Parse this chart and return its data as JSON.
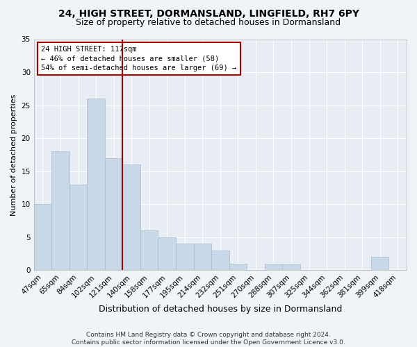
{
  "title1": "24, HIGH STREET, DORMANSLAND, LINGFIELD, RH7 6PY",
  "title2": "Size of property relative to detached houses in Dormansland",
  "xlabel": "Distribution of detached houses by size in Dormansland",
  "ylabel": "Number of detached properties",
  "categories": [
    "47sqm",
    "65sqm",
    "84sqm",
    "102sqm",
    "121sqm",
    "140sqm",
    "158sqm",
    "177sqm",
    "195sqm",
    "214sqm",
    "232sqm",
    "251sqm",
    "270sqm",
    "288sqm",
    "307sqm",
    "325sqm",
    "344sqm",
    "362sqm",
    "381sqm",
    "399sqm",
    "418sqm"
  ],
  "values": [
    10,
    18,
    13,
    26,
    17,
    16,
    6,
    5,
    4,
    4,
    3,
    1,
    0,
    1,
    1,
    0,
    0,
    0,
    0,
    2,
    0
  ],
  "bar_color": "#c8d8e8",
  "bar_edge_color": "#aabccc",
  "vline_x_index": 4.5,
  "vline_color": "#aa0000",
  "annotation_text": "24 HIGH STREET: 117sqm\n← 46% of detached houses are smaller (58)\n54% of semi-detached houses are larger (69) →",
  "annotation_box_color": "#ffffff",
  "annotation_border_color": "#aa0000",
  "ylim": [
    0,
    35
  ],
  "yticks": [
    0,
    5,
    10,
    15,
    20,
    25,
    30,
    35
  ],
  "footer": "Contains HM Land Registry data © Crown copyright and database right 2024.\nContains public sector information licensed under the Open Government Licence v3.0.",
  "fig_bg_color": "#f0f4f8",
  "plot_bg_color": "#e8eef4",
  "grid_color": "#ffffff",
  "title1_fontsize": 10,
  "title2_fontsize": 9,
  "xlabel_fontsize": 9,
  "ylabel_fontsize": 8,
  "tick_fontsize": 7.5,
  "footer_fontsize": 6.5
}
